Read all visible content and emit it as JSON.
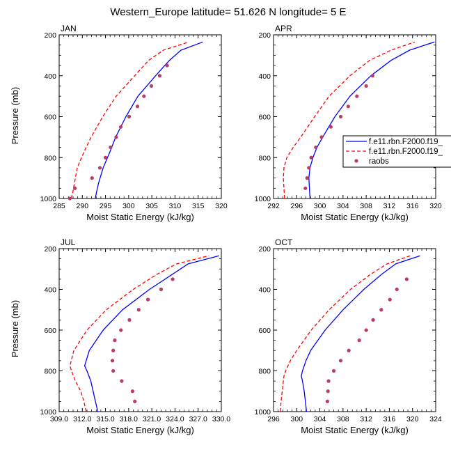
{
  "figure": {
    "title": "Western_Europe  latitude= 51.626 N longitude= 5 E",
    "ylabel": "Pressure (mb)",
    "xlabel": "Moist Static Energy (kJ/kg)"
  },
  "legend": {
    "entries": [
      {
        "name": "f.e11.rbn.F2000.f19_",
        "style": "solid",
        "color": "#0000ff"
      },
      {
        "name": "f.e11.rbn.F2000.f19_",
        "style": "dashed",
        "color": "#ff0000"
      },
      {
        "name": "raobs",
        "style": "marker",
        "color": "#b83d6a"
      }
    ]
  },
  "chart_data": [
    {
      "type": "line",
      "title": "JAN",
      "xlabel": "Moist Static Energy (kJ/kg)",
      "ylabel": "Pressure (mb)",
      "xlim": [
        285,
        320
      ],
      "ylim": [
        1000,
        200
      ],
      "xticks": [
        285,
        290,
        295,
        300,
        305,
        310,
        315,
        320
      ],
      "xtick_labels": [
        "285",
        "290",
        "295",
        "300",
        "305",
        "310",
        "315",
        "320"
      ],
      "yticks": [
        200,
        400,
        600,
        800,
        1000
      ],
      "series": [
        {
          "name": "f.e11.rbn.F2000.f19_",
          "style": "solid",
          "color": "#0000ff",
          "p": [
            1000,
            975,
            925,
            850,
            775,
            700,
            600,
            500,
            400,
            325,
            275,
            235
          ],
          "x": [
            292.8,
            293.0,
            293.5,
            294.5,
            295.9,
            297.2,
            299.4,
            302.0,
            305.8,
            308.8,
            311.3,
            316.0
          ]
        },
        {
          "name": "f.e11.rbn.F2000.f19_",
          "style": "dashed",
          "color": "#ff0000",
          "p": [
            1000,
            975,
            925,
            850,
            775,
            700,
            600,
            500,
            400,
            325,
            275,
            235
          ],
          "x": [
            287.6,
            287.9,
            288.3,
            288.9,
            290.3,
            291.9,
            294.4,
            297.3,
            301.3,
            304.3,
            307.5,
            313.0
          ]
        },
        {
          "name": "raobs",
          "style": "marker",
          "color": "#b83d6a",
          "p": [
            1000,
            950,
            900,
            850,
            800,
            750,
            700,
            650,
            600,
            550,
            500,
            450,
            400,
            350
          ],
          "x": [
            287.3,
            288.4,
            292.1,
            293.8,
            295.0,
            296.1,
            297.3,
            298.3,
            300.1,
            301.9,
            303.3,
            304.9,
            306.7,
            308.3
          ]
        }
      ]
    },
    {
      "type": "line",
      "title": "APR",
      "xlabel": "Moist Static Energy (kJ/kg)",
      "ylabel": "",
      "xlim": [
        292,
        320
      ],
      "ylim": [
        1000,
        200
      ],
      "xticks": [
        292,
        296,
        300,
        304,
        308,
        312,
        316,
        320
      ],
      "xtick_labels": [
        "292",
        "296",
        "300",
        "304",
        "308",
        "312",
        "316",
        "320"
      ],
      "yticks": [
        200,
        400,
        600,
        800,
        1000
      ],
      "series": [
        {
          "name": "f.e11.rbn.F2000.f19_",
          "style": "solid",
          "color": "#0000ff",
          "p": [
            1000,
            950,
            900,
            850,
            800,
            750,
            700,
            600,
            500,
            400,
            325,
            275,
            235
          ],
          "x": [
            298.3,
            298.2,
            298.1,
            298.3,
            298.8,
            299.5,
            300.5,
            302.6,
            305.2,
            308.8,
            312.3,
            315.5,
            319.8
          ]
        },
        {
          "name": "f.e11.rbn.F2000.f19_",
          "style": "dashed",
          "color": "#ff0000",
          "p": [
            1000,
            950,
            900,
            850,
            800,
            750,
            700,
            600,
            500,
            400,
            325,
            275,
            235
          ],
          "x": [
            293.9,
            293.8,
            293.7,
            293.8,
            294.3,
            295.4,
            296.7,
            299.1,
            301.6,
            305.2,
            308.6,
            312.3,
            316.4
          ]
        },
        {
          "name": "raobs",
          "style": "marker",
          "color": "#b83d6a",
          "p": [
            950,
            900,
            850,
            800,
            750,
            700,
            650,
            600,
            550,
            500,
            450,
            400
          ],
          "x": [
            297.5,
            297.8,
            298.1,
            298.5,
            299.3,
            300.3,
            301.9,
            303.6,
            304.9,
            306.4,
            308.0,
            309.1
          ]
        }
      ]
    },
    {
      "type": "line",
      "title": "JUL",
      "xlabel": "Moist Static Energy (kJ/kg)",
      "ylabel": "Pressure (mb)",
      "xlim": [
        309,
        330
      ],
      "ylim": [
        1000,
        200
      ],
      "xticks": [
        309,
        312,
        315,
        318,
        321,
        324,
        327,
        330
      ],
      "xtick_labels": [
        "309.0",
        "312.0",
        "315.0",
        "318.0",
        "321.0",
        "324.0",
        "327.0",
        "330.0"
      ],
      "yticks": [
        200,
        400,
        600,
        800,
        1000
      ],
      "series": [
        {
          "name": "f.e11.rbn.F2000.f19_",
          "style": "solid",
          "color": "#0000ff",
          "p": [
            1000,
            950,
            900,
            850,
            800,
            775,
            700,
            600,
            500,
            400,
            325,
            275,
            235
          ],
          "x": [
            314.0,
            313.7,
            313.4,
            313.1,
            312.6,
            312.3,
            312.9,
            314.7,
            317.2,
            320.7,
            323.7,
            325.7,
            329.7
          ]
        },
        {
          "name": "f.e11.rbn.F2000.f19_",
          "style": "dashed",
          "color": "#ff0000",
          "p": [
            1000,
            950,
            900,
            850,
            800,
            775,
            700,
            600,
            500,
            400,
            325,
            275,
            235
          ],
          "x": [
            312.5,
            312.2,
            311.8,
            311.1,
            310.6,
            310.4,
            310.9,
            312.6,
            315.1,
            318.6,
            321.7,
            324.2,
            328.4
          ]
        },
        {
          "name": "raobs",
          "style": "marker",
          "color": "#b83d6a",
          "p": [
            950,
            900,
            850,
            800,
            750,
            700,
            650,
            600,
            550,
            500,
            450,
            400,
            350
          ],
          "x": [
            318.8,
            318.5,
            317.1,
            316.0,
            315.9,
            316.0,
            316.2,
            317.0,
            318.1,
            319.3,
            320.5,
            322.2,
            323.7
          ]
        }
      ]
    },
    {
      "type": "line",
      "title": "OCT",
      "xlabel": "Moist Static Energy (kJ/kg)",
      "ylabel": "",
      "xlim": [
        296,
        324
      ],
      "ylim": [
        1000,
        200
      ],
      "xticks": [
        296,
        300,
        304,
        308,
        312,
        316,
        320,
        324
      ],
      "xtick_labels": [
        "296",
        "300",
        "304",
        "308",
        "312",
        "316",
        "320",
        "324"
      ],
      "yticks": [
        200,
        400,
        600,
        800,
        1000
      ],
      "series": [
        {
          "name": "f.e11.rbn.F2000.f19_",
          "style": "solid",
          "color": "#0000ff",
          "p": [
            1000,
            950,
            900,
            850,
            825,
            800,
            750,
            700,
            600,
            500,
            400,
            325,
            275,
            235
          ],
          "x": [
            301.7,
            301.5,
            301.3,
            301.0,
            300.8,
            301.0,
            301.6,
            302.4,
            304.9,
            308.0,
            311.6,
            314.7,
            317.1,
            321.3
          ]
        },
        {
          "name": "f.e11.rbn.F2000.f19_",
          "style": "dashed",
          "color": "#ff0000",
          "p": [
            1000,
            950,
            900,
            850,
            825,
            800,
            750,
            700,
            600,
            500,
            400,
            325,
            275,
            235
          ],
          "x": [
            297.2,
            297.3,
            297.5,
            297.7,
            297.8,
            298.1,
            298.9,
            300.0,
            302.5,
            305.6,
            309.3,
            312.8,
            315.6,
            319.6
          ]
        },
        {
          "name": "raobs",
          "style": "marker",
          "color": "#b83d6a",
          "p": [
            950,
            900,
            850,
            800,
            750,
            700,
            650,
            600,
            550,
            500,
            450,
            400,
            350
          ],
          "x": [
            305.3,
            305.4,
            305.5,
            306.4,
            307.6,
            309.0,
            310.8,
            312.0,
            313.2,
            314.6,
            316.1,
            317.3,
            319.0
          ]
        }
      ]
    }
  ]
}
